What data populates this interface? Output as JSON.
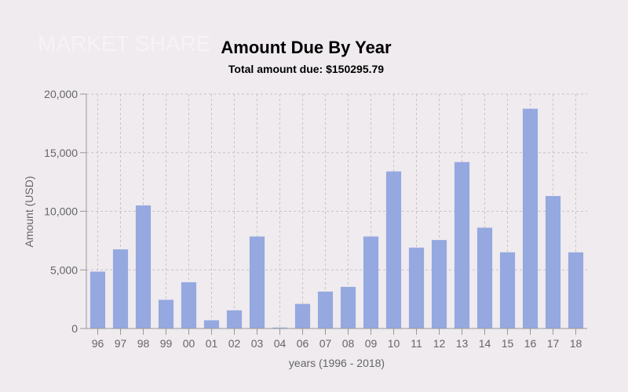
{
  "watermark": "MARKET SHARE",
  "chart_data": {
    "type": "bar",
    "title": "Amount Due By Year",
    "subtitle": "Total amount due: $150295.79",
    "xlabel": "years (1996 - 2018)",
    "ylabel": "Amount (USD)",
    "ylim": [
      0,
      20000
    ],
    "yticks": [
      "0",
      "5,000",
      "10,000",
      "15,000",
      "20,000"
    ],
    "grid": true,
    "categories": [
      "96",
      "97",
      "98",
      "99",
      "00",
      "01",
      "02",
      "03",
      "04",
      "06",
      "07",
      "08",
      "09",
      "10",
      "11",
      "12",
      "13",
      "14",
      "15",
      "16",
      "17",
      "18"
    ],
    "values": [
      4850,
      6750,
      10500,
      2450,
      3950,
      700,
      1550,
      7850,
      80,
      2100,
      3150,
      3550,
      7850,
      13400,
      6900,
      7550,
      14200,
      8600,
      6500,
      18750,
      11300,
      6500
    ],
    "bar_color": "#95a8e0"
  }
}
